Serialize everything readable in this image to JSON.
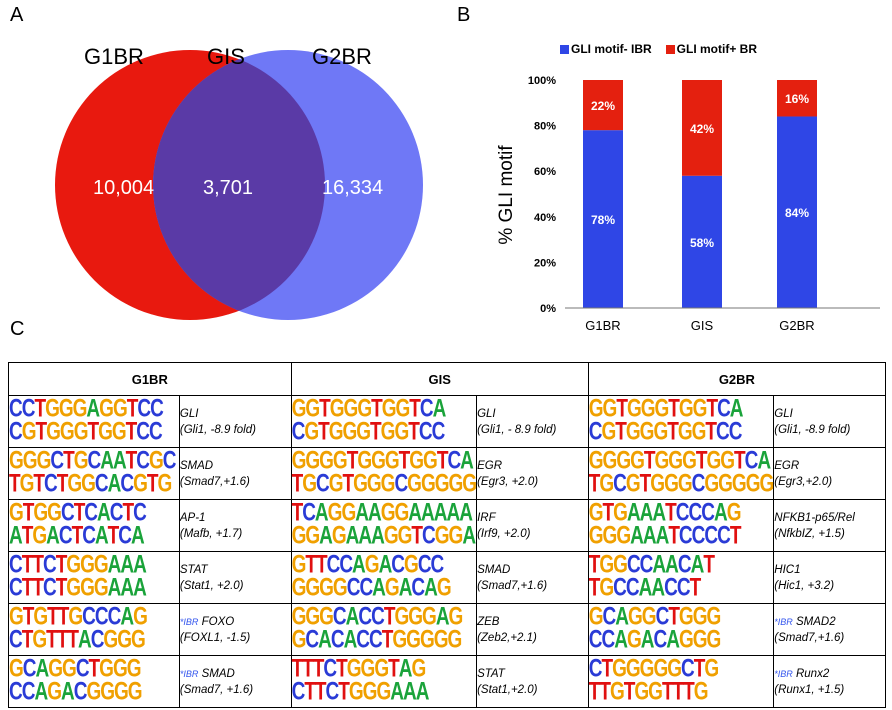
{
  "panels": {
    "a": "A",
    "b": "B",
    "c": "C"
  },
  "venn": {
    "labels": {
      "left": "G1BR",
      "middle": "GIS",
      "right": "G2BR"
    },
    "values": {
      "left": "10,004",
      "overlap": "3,701",
      "right": "16,334"
    },
    "colors": {
      "left": "#e8190f",
      "right": "#6f78f6",
      "overlap": "#5a3aa6"
    }
  },
  "chart_data": {
    "type": "bar",
    "stacked": true,
    "percent": true,
    "categories": [
      "G1BR",
      "GIS",
      "G2BR"
    ],
    "series": [
      {
        "name": "GLI motif- IBR",
        "values": [
          78,
          58,
          84
        ],
        "labels": [
          "78%",
          "58%",
          "84%"
        ],
        "color": "#2f46e6"
      },
      {
        "name": "GLI motif+ BR",
        "values": [
          22,
          42,
          16
        ],
        "labels": [
          "22%",
          "42%",
          "16%"
        ],
        "color": "#e4200f"
      }
    ],
    "ylabel": "% GLI motif",
    "yticks": [
      "0%",
      "20%",
      "40%",
      "60%",
      "80%",
      "100%"
    ],
    "ylim": [
      0,
      100
    ],
    "legend": "top"
  },
  "table": {
    "headers": [
      "G1BR",
      "GIS",
      "G2BR"
    ],
    "rows": [
      [
        {
          "logo": [
            "CCTGGGAGGTCC",
            "CGTGGGTGGTCC"
          ],
          "name": "GLI",
          "detail": "(Gli1, -8.9 fold)",
          "ibr": false
        },
        {
          "logo": [
            "GGTGGGTGGTCA",
            "CGTGGGTGGTCC"
          ],
          "name": "GLI",
          "detail": "(Gli1, - 8.9 fold)",
          "ibr": false
        },
        {
          "logo": [
            "GGTGGGTGGTCA",
            "CGTGGGTGGTCC"
          ],
          "name": "GLI",
          "detail": "(Gli1, -8.9 fold)",
          "ibr": false
        }
      ],
      [
        {
          "logo": [
            "GGGCTGCAATCGC",
            "TGTCTGGCACGTG"
          ],
          "name": "SMAD",
          "detail": "(Smad7,+1.6)",
          "ibr": false
        },
        {
          "logo": [
            "GGGGTGGGTGGTCA",
            "TGCGTGGGCGGGGG"
          ],
          "name": "EGR",
          "detail": "(Egr3, +2.0)",
          "ibr": false
        },
        {
          "logo": [
            "GGGGTGGGTGGTCA",
            "TGCGTGGGCGGGGG"
          ],
          "name": "EGR",
          "detail": "(Egr3,+2.0)",
          "ibr": false
        }
      ],
      [
        {
          "logo": [
            "GTGGCTCACTC",
            "ATGACTCATCA"
          ],
          "name": "AP-1",
          "detail": "(Mafb, +1.7)",
          "ibr": false
        },
        {
          "logo": [
            "TCAGGAAGGAAAAA",
            "GGAGAAAGGTCGGA"
          ],
          "name": "IRF",
          "detail": "(Irf9, +2.0)",
          "ibr": false
        },
        {
          "logo": [
            "GTGAAATCCCAG",
            "GGGAAATCCCCT"
          ],
          "name": "NFKB1-p65/Rel",
          "detail": "(NfkbIZ, +1.5)",
          "ibr": false
        }
      ],
      [
        {
          "logo": [
            "CTTCTGGGAAA",
            "CTTCTGGGAAA"
          ],
          "name": "STAT",
          "detail": "(Stat1, +2.0)",
          "ibr": false
        },
        {
          "logo": [
            "GTTCCAGACGCC",
            "GGGGCCAGACAG"
          ],
          "name": "SMAD",
          "detail": "(Smad7,+1.6)",
          "ibr": false
        },
        {
          "logo": [
            "TGGCCAACAT",
            "TGCCAACCT"
          ],
          "name": "HIC1",
          "detail": "(Hic1, +3.2)",
          "ibr": false
        }
      ],
      [
        {
          "logo": [
            "GTGTTGCCCAG",
            "CTGTTTACGGG"
          ],
          "name": "FOXO",
          "detail": "(FOXL1, -1.5)",
          "ibr": true
        },
        {
          "logo": [
            "GGGCACCTGGGAG",
            "GCACACCTGGGGG"
          ],
          "name": "ZEB",
          "detail": "(Zeb2,+2.1)",
          "ibr": false
        },
        {
          "logo": [
            "GCAGGCTGGG",
            "CCAGACAGGG"
          ],
          "name": "SMAD2",
          "detail": "(Smad7,+1.6)",
          "ibr": true
        }
      ],
      [
        {
          "logo": [
            "GCAGGCTGGG",
            "CCAGACGGGG"
          ],
          "name": "SMAD",
          "detail": "(Smad7, +1.6)",
          "ibr": true
        },
        {
          "logo": [
            "TTTCTGGGTAG",
            "CTTCTGGGAAA"
          ],
          "name": "STAT",
          "detail": "(Stat1,+2.0)",
          "ibr": false
        },
        {
          "logo": [
            "CTGGGGGCTG",
            "TTGTGGTTTG"
          ],
          "name": "Runx2",
          "detail": "(Runx1, +1.5)",
          "ibr": true
        }
      ]
    ],
    "ibr_tag": "*IBR"
  },
  "base_colors": {
    "A": "#1aa33a",
    "C": "#2a3bd6",
    "G": "#f0a000",
    "T": "#e01010"
  }
}
